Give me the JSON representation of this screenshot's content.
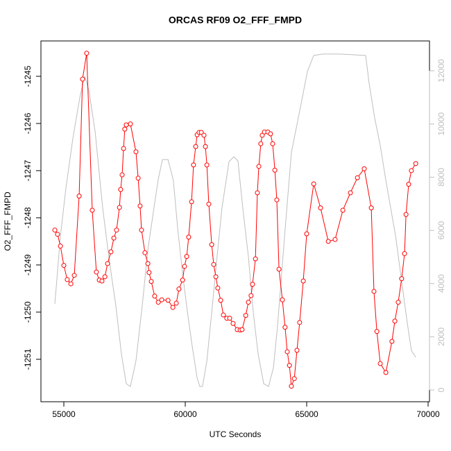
{
  "chart_data": {
    "type": "line",
    "title": "ORCAS RF09 O2_FFF_FMPD",
    "x_label": "UTC Seconds",
    "y_label": "O2_FFF_FMPD",
    "xlim": [
      54057,
      70057
    ],
    "xticks": [
      55000,
      60000,
      65000,
      70000
    ],
    "ylim": [
      -1251.9,
      -1244.25
    ],
    "yticks": [
      -1251,
      -1250,
      -1249,
      -1248,
      -1247,
      -1246,
      -1245
    ],
    "y2lim": [
      -443,
      13122
    ],
    "y2ticks": [
      0,
      2000,
      4000,
      6000,
      8000,
      10000,
      12000
    ],
    "y2_color": "#bebebe",
    "series": [
      {
        "color": "#ff0000",
        "markers": true,
        "x": [
          54630,
          54740,
          54860,
          55000,
          55140,
          55290,
          55430,
          55630,
          55770,
          55940,
          56170,
          56340,
          56460,
          56570,
          56690,
          56800,
          56940,
          57060,
          57170,
          57290,
          57340,
          57400,
          57460,
          57510,
          57570,
          57740,
          57970,
          58060,
          58140,
          58200,
          58340,
          58460,
          58510,
          58600,
          58740,
          58890,
          59030,
          59290,
          59490,
          59630,
          59740,
          59890,
          59970,
          60060,
          60140,
          60260,
          60340,
          60430,
          60490,
          60570,
          60660,
          60770,
          60830,
          60890,
          60970,
          61090,
          61170,
          61260,
          61340,
          61460,
          61570,
          61710,
          61830,
          61970,
          62140,
          62260,
          62340,
          62490,
          62600,
          62710,
          62770,
          62890,
          62970,
          63030,
          63110,
          63170,
          63260,
          63400,
          63510,
          63600,
          63690,
          63770,
          63860,
          64000,
          64110,
          64200,
          64290,
          64370,
          64490,
          64600,
          64710,
          64860,
          65000,
          65290,
          65570,
          65890,
          66170,
          66490,
          66800,
          67090,
          67370,
          67660,
          67770,
          67890,
          68030,
          68260,
          68510,
          68630,
          68770,
          68910,
          69030,
          69090,
          69200,
          69310,
          69490
        ],
        "values": [
          -1248.26,
          -1248.35,
          -1248.6,
          -1249.01,
          -1249.31,
          -1249.4,
          -1249.22,
          -1247.54,
          -1245.06,
          -1244.51,
          -1247.84,
          -1249.15,
          -1249.32,
          -1249.34,
          -1249.25,
          -1248.97,
          -1248.72,
          -1248.43,
          -1248.26,
          -1247.78,
          -1247.4,
          -1247.09,
          -1246.53,
          -1246.12,
          -1246.03,
          -1246.01,
          -1246.6,
          -1247.16,
          -1247.75,
          -1248.26,
          -1248.74,
          -1248.97,
          -1249.16,
          -1249.35,
          -1249.66,
          -1249.79,
          -1249.74,
          -1249.75,
          -1249.9,
          -1249.81,
          -1249.51,
          -1249.32,
          -1249.03,
          -1248.82,
          -1248.41,
          -1247.66,
          -1246.88,
          -1246.49,
          -1246.24,
          -1246.19,
          -1246.19,
          -1246.25,
          -1246.49,
          -1246.88,
          -1247.71,
          -1248.57,
          -1248.99,
          -1249.25,
          -1249.49,
          -1249.75,
          -1250.06,
          -1250.13,
          -1250.13,
          -1250.24,
          -1250.37,
          -1250.38,
          -1250.37,
          -1250.07,
          -1249.79,
          -1249.65,
          -1249.41,
          -1248.87,
          -1247.47,
          -1246.91,
          -1246.43,
          -1246.25,
          -1246.18,
          -1246.18,
          -1246.22,
          -1246.43,
          -1246.99,
          -1247.62,
          -1249.09,
          -1249.74,
          -1250.32,
          -1250.84,
          -1251.13,
          -1251.57,
          -1251.41,
          -1250.81,
          -1250.22,
          -1249.34,
          -1248.34,
          -1247.28,
          -1247.79,
          -1248.5,
          -1248.46,
          -1247.84,
          -1247.47,
          -1247.15,
          -1246.96,
          -1247.79,
          -1249.56,
          -1250.41,
          -1251.09,
          -1251.28,
          -1250.62,
          -1250.19,
          -1249.79,
          -1249.29,
          -1248.76,
          -1247.93,
          -1247.29,
          -1247.0,
          -1246.85
        ]
      },
      {
        "color": "#bebebe",
        "axis": "y2",
        "markers": false,
        "x": [
          54630,
          54860,
          55090,
          55370,
          55660,
          55860,
          56030,
          56290,
          56600,
          56890,
          57140,
          57370,
          57570,
          57740,
          57970,
          58230,
          58460,
          58710,
          58890,
          59060,
          59290,
          59510,
          59690,
          59910,
          60090,
          60290,
          60490,
          60600,
          60710,
          60890,
          61090,
          61310,
          61510,
          61800,
          62000,
          62170,
          62370,
          62600,
          62800,
          63000,
          63230,
          63430,
          63630,
          63800,
          64090,
          64370,
          64740,
          65030,
          65290,
          65660,
          66370,
          66940,
          67430,
          67570,
          67800,
          68030,
          68260,
          68460,
          68660,
          68890,
          69120,
          69310,
          69490
        ],
        "values": [
          3235,
          5792,
          7618,
          9445,
          11010,
          11793,
          11271,
          9705,
          6836,
          4748,
          3183,
          1357,
          235,
          130,
          1096,
          3183,
          5270,
          6836,
          7931,
          8662,
          8662,
          7879,
          6053,
          4227,
          2922,
          1618,
          444,
          130,
          130,
          1096,
          2922,
          5009,
          6836,
          8584,
          8766,
          8610,
          6836,
          5009,
          2922,
          1357,
          235,
          130,
          835,
          2400,
          5792,
          8923,
          10619,
          11975,
          12575,
          12628,
          12628,
          12601,
          12575,
          11532,
          10227,
          9184,
          7879,
          6836,
          5792,
          4227,
          2661,
          1487,
          1226
        ]
      }
    ]
  }
}
